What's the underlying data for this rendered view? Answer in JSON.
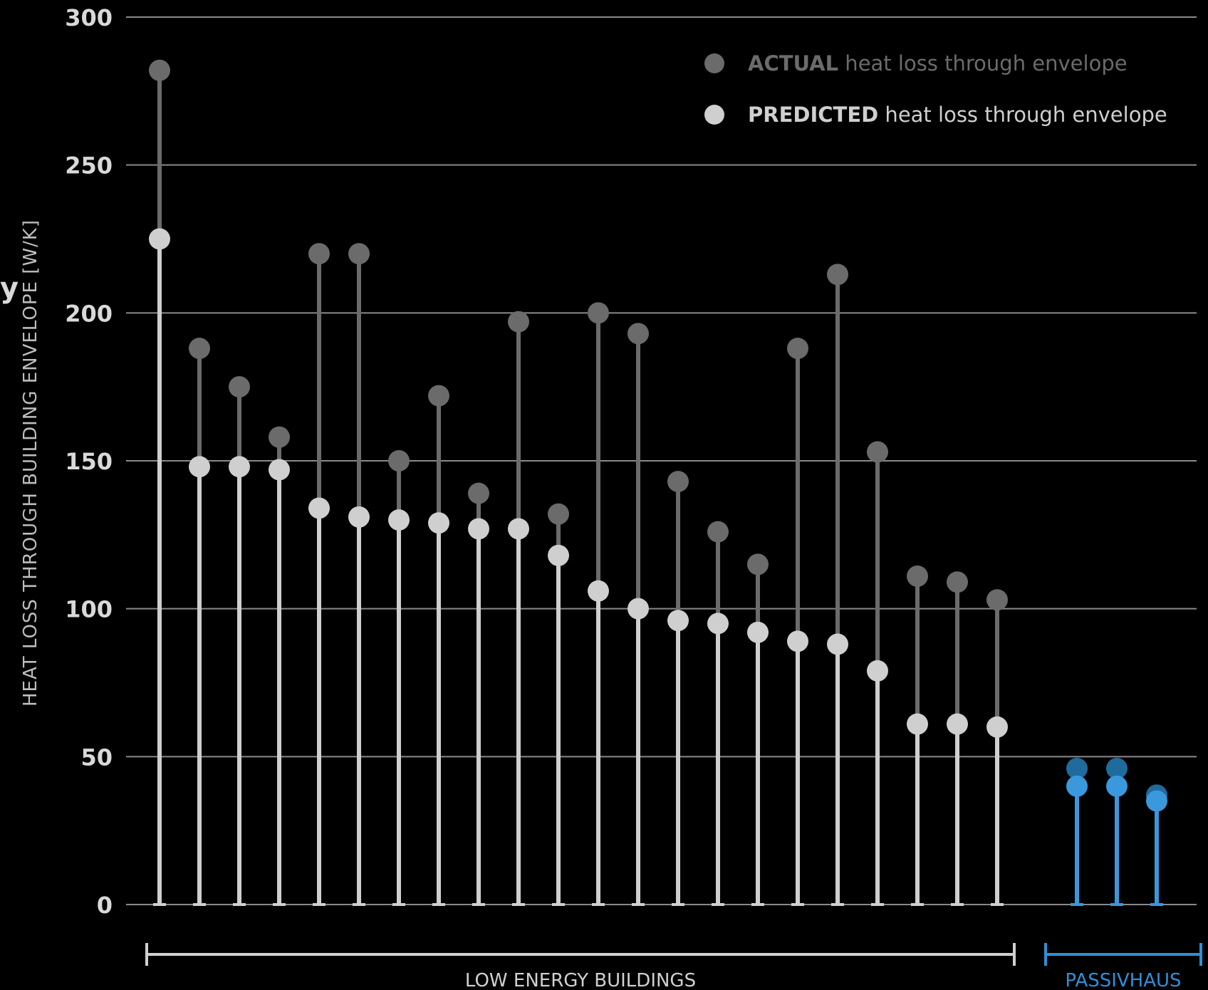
{
  "chart_data": {
    "type": "scatter",
    "title": "",
    "ylabel": "HEAT LOSS THROUGH BUILDING ENVELOPE  [W/K]",
    "xlabel": "",
    "ylim": [
      0,
      300
    ],
    "yticks": [
      0,
      50,
      100,
      150,
      200,
      250,
      300
    ],
    "grid": true,
    "legend_position": "top-right",
    "fragment_text": "y",
    "legend": [
      {
        "bold": "ACTUAL",
        "text": " heat loss through envelope",
        "color": "#6b6b6b"
      },
      {
        "bold": "PREDICTED",
        "text": " heat loss through envelope",
        "color": "#cfcfcf"
      }
    ],
    "groups": [
      {
        "label": "LOW ENERGY BUILDINGS",
        "color": "#d0d0d0",
        "start": 0,
        "end": 21
      },
      {
        "label": "PASSIVHAUS",
        "color": "#2f8fd8",
        "start": 22,
        "end": 24
      }
    ],
    "series": [
      {
        "name": "ACTUAL heat loss through envelope",
        "values": [
          282,
          188,
          175,
          158,
          220,
          220,
          150,
          172,
          139,
          197,
          132,
          200,
          193,
          143,
          126,
          115,
          188,
          213,
          153,
          111,
          109,
          103,
          46,
          46,
          37
        ]
      },
      {
        "name": "PREDICTED heat loss through envelope",
        "values": [
          225,
          148,
          148,
          147,
          134,
          131,
          130,
          129,
          127,
          127,
          118,
          106,
          100,
          96,
          95,
          92,
          89,
          88,
          79,
          61,
          61,
          60,
          40,
          40,
          35
        ]
      }
    ],
    "colors": {
      "background": "#000000",
      "grid": "#8a8a8a",
      "actual": "#6b6b6b",
      "predicted": "#cfcfcf",
      "passivhaus_actual": "#1f6b9e",
      "passivhaus_predicted": "#3a98dc"
    }
  }
}
